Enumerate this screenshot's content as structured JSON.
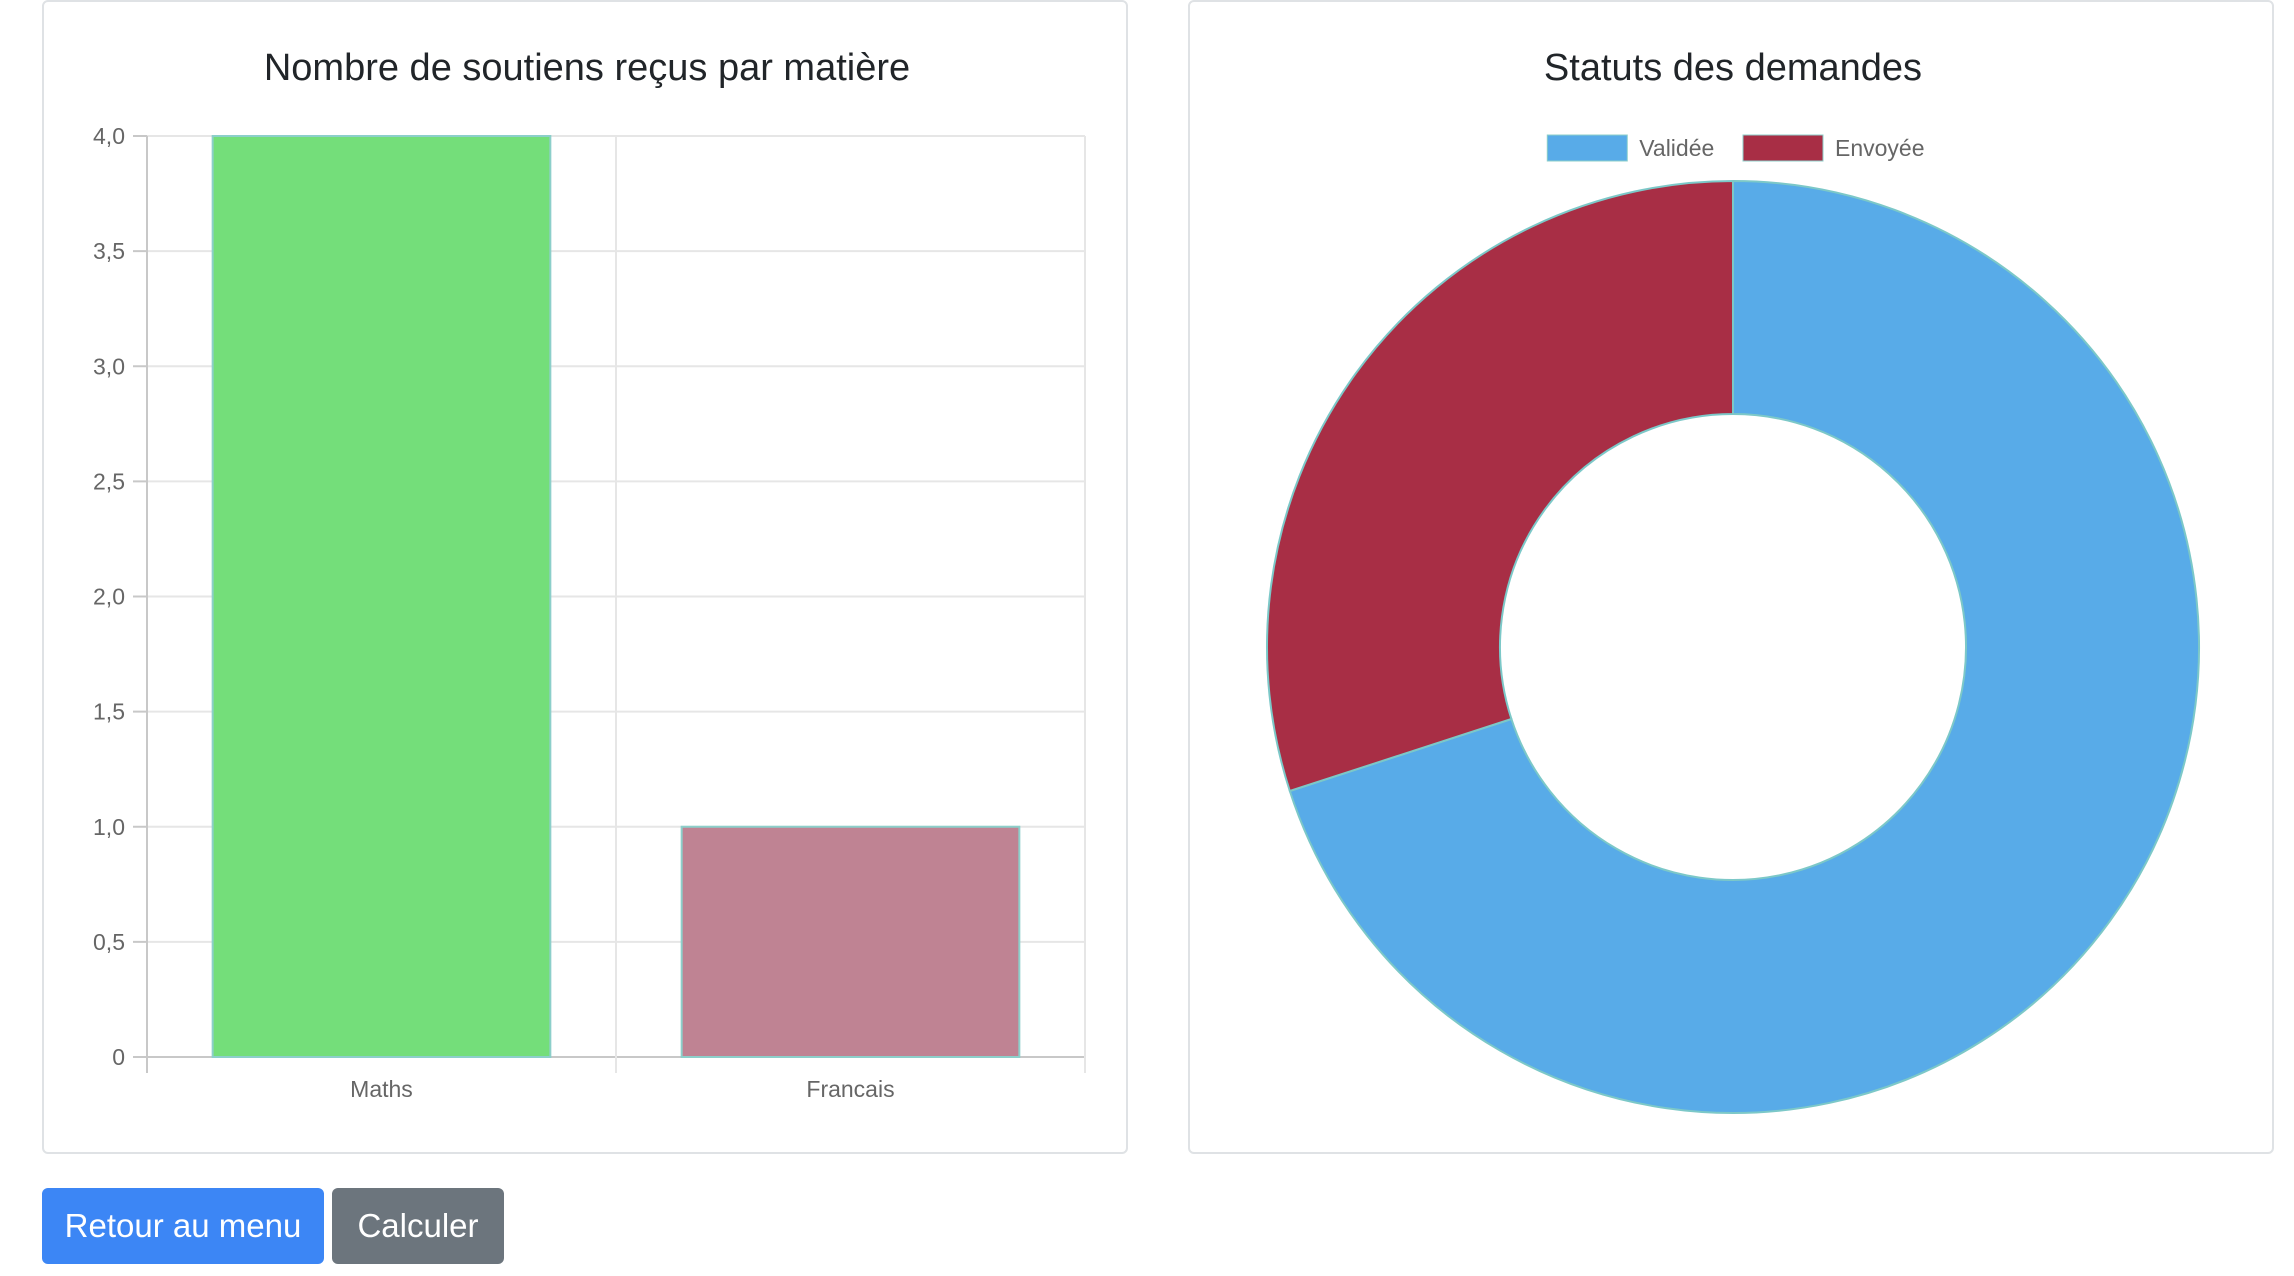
{
  "bar_chart": {
    "tick_labels": [
      "0",
      "0,5",
      "1,0",
      "1,5",
      "2,0",
      "2,5",
      "3,0",
      "3,5",
      "4,0"
    ]
  },
  "buttons": {
    "back_label": "Retour au menu",
    "calc_label": "Calculer"
  },
  "colors": {
    "maths_bar": "#74de7a",
    "francais_bar": "#bf8393",
    "validee": "#58abe8",
    "envoyee": "#a82e45",
    "primary_button": "#3c86f5",
    "secondary_button": "#6c757d"
  },
  "chart_data": [
    {
      "type": "bar",
      "title": "Nombre de soutiens reçus par matière",
      "categories": [
        "Maths",
        "Francais"
      ],
      "values": [
        4,
        1
      ],
      "xlabel": "",
      "ylabel": "",
      "ylim": [
        0,
        4
      ],
      "grid": true,
      "legend": "none"
    },
    {
      "type": "pie",
      "variant": "doughnut",
      "title": "Statuts des demandes",
      "labels": [
        "Validée",
        "Envoyée"
      ],
      "values": [
        7,
        3
      ],
      "legend": "top"
    }
  ]
}
